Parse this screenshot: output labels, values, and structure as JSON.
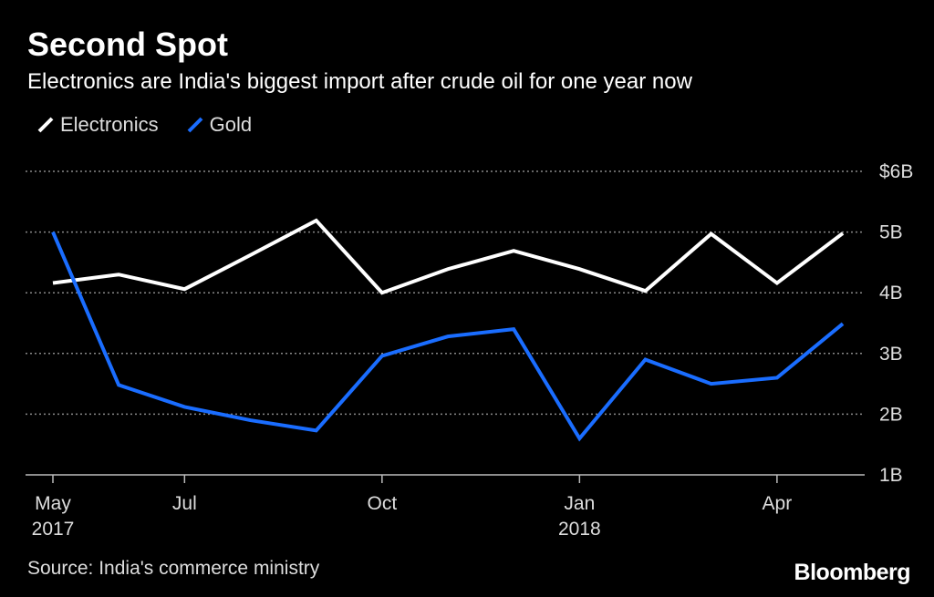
{
  "title": "Second Spot",
  "subtitle": "Electronics are India's biggest import after crude oil for one year now",
  "source": "Source: India's commerce ministry",
  "logo": "Bloomberg",
  "chart_data": {
    "type": "line",
    "x": [
      "2017-05",
      "2017-06",
      "2017-07",
      "2017-08",
      "2017-09",
      "2017-10",
      "2017-11",
      "2017-12",
      "2018-01",
      "2018-02",
      "2018-03",
      "2018-04",
      "2018-05"
    ],
    "x_ticks": [
      {
        "at": "2017-05",
        "label": "May",
        "sublabel": "2017"
      },
      {
        "at": "2017-07",
        "label": "Jul",
        "sublabel": ""
      },
      {
        "at": "2017-10",
        "label": "Oct",
        "sublabel": ""
      },
      {
        "at": "2018-01",
        "label": "Jan",
        "sublabel": "2018"
      },
      {
        "at": "2018-04",
        "label": "Apr",
        "sublabel": ""
      }
    ],
    "y_ticks": [
      {
        "value": 6,
        "label": "$6B"
      },
      {
        "value": 5,
        "label": "5B"
      },
      {
        "value": 4,
        "label": "4B"
      },
      {
        "value": 3,
        "label": "3B"
      },
      {
        "value": 2,
        "label": "2B"
      },
      {
        "value": 1,
        "label": "1B"
      }
    ],
    "ylim": [
      1,
      6
    ],
    "grid": true,
    "legend_position": "top-left",
    "series": [
      {
        "name": "Electronics",
        "color": "#ffffff",
        "values": [
          4.16,
          4.3,
          4.06,
          4.62,
          5.19,
          4.0,
          4.39,
          4.69,
          4.39,
          4.03,
          4.97,
          4.16,
          4.98
        ]
      },
      {
        "name": "Gold",
        "color": "#1a6dff",
        "values": [
          5.0,
          2.48,
          2.12,
          1.9,
          1.73,
          2.96,
          3.28,
          3.4,
          1.6,
          2.9,
          2.5,
          2.6,
          3.49
        ]
      }
    ]
  }
}
